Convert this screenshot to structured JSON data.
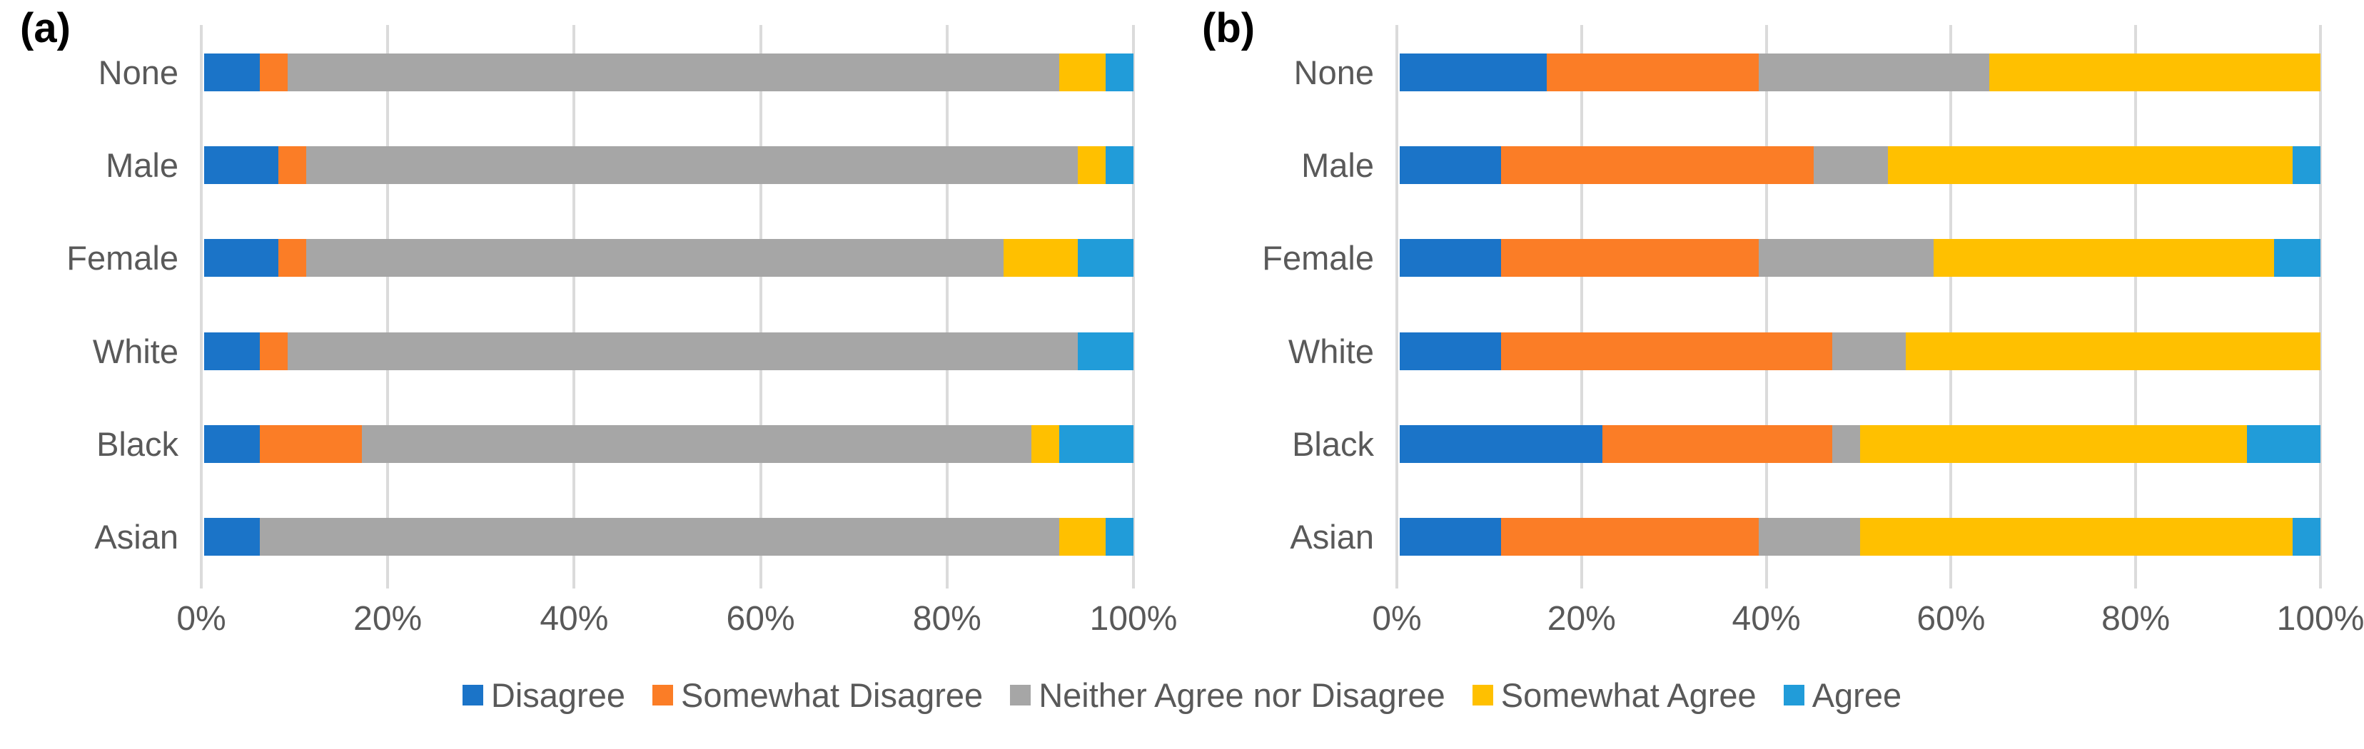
{
  "figure": {
    "background": "#ffffff",
    "text_color": "#595959",
    "gridline_color": "#dbdbdb"
  },
  "x_axis": {
    "tick_labels": [
      "0%",
      "20%",
      "40%",
      "60%",
      "80%",
      "100%"
    ]
  },
  "legend": {
    "items": [
      {
        "label": "Disagree",
        "color": "#1b74c8"
      },
      {
        "label": "Somewhat Disagree",
        "color": "#fb7d26"
      },
      {
        "label": "Neither Agree nor Disagree",
        "color": "#a6a6a6"
      },
      {
        "label": "Somewhat Agree",
        "color": "#ffc000"
      },
      {
        "label": "Agree",
        "color": "#219cd9"
      }
    ]
  },
  "chart_data": [
    {
      "type": "bar",
      "panel_label": "(a)",
      "orientation": "horizontal",
      "stacked": true,
      "unit": "percent",
      "categories": [
        "None",
        "Male",
        "Female",
        "White",
        "Black",
        "Asian"
      ],
      "series": [
        {
          "name": "Disagree",
          "color": "#1b74c8",
          "values": [
            6,
            8,
            8,
            6,
            6,
            6
          ]
        },
        {
          "name": "Somewhat Disagree",
          "color": "#fb7d26",
          "values": [
            3,
            3,
            3,
            3,
            11,
            0
          ]
        },
        {
          "name": "Neither Agree nor Disagree",
          "color": "#a6a6a6",
          "values": [
            83,
            83,
            75,
            85,
            72,
            86
          ]
        },
        {
          "name": "Somewhat Agree",
          "color": "#ffc000",
          "values": [
            5,
            3,
            8,
            0,
            3,
            5
          ]
        },
        {
          "name": "Agree",
          "color": "#219cd9",
          "values": [
            3,
            3,
            6,
            6,
            8,
            3
          ]
        }
      ],
      "x_tick_labels": [
        "0%",
        "20%",
        "40%",
        "60%",
        "80%",
        "100%"
      ],
      "xlim": [
        0,
        100
      ],
      "grid": "vertical",
      "legend_position": "bottom-shared"
    },
    {
      "type": "bar",
      "panel_label": "(b)",
      "orientation": "horizontal",
      "stacked": true,
      "unit": "percent",
      "categories": [
        "None",
        "Male",
        "Female",
        "White",
        "Black",
        "Asian"
      ],
      "series": [
        {
          "name": "Disagree",
          "color": "#1b74c8",
          "values": [
            16,
            11,
            11,
            11,
            22,
            11
          ]
        },
        {
          "name": "Somewhat Disagree",
          "color": "#fb7d26",
          "values": [
            23,
            34,
            28,
            36,
            25,
            28
          ]
        },
        {
          "name": "Neither Agree nor Disagree",
          "color": "#a6a6a6",
          "values": [
            25,
            8,
            19,
            8,
            3,
            11
          ]
        },
        {
          "name": "Somewhat Agree",
          "color": "#ffc000",
          "values": [
            36,
            44,
            37,
            45,
            42,
            47
          ]
        },
        {
          "name": "Agree",
          "color": "#219cd9",
          "values": [
            0,
            3,
            5,
            0,
            8,
            3
          ]
        }
      ],
      "x_tick_labels": [
        "0%",
        "20%",
        "40%",
        "60%",
        "80%",
        "100%"
      ],
      "xlim": [
        0,
        100
      ],
      "grid": "vertical",
      "legend_position": "bottom-shared"
    }
  ]
}
